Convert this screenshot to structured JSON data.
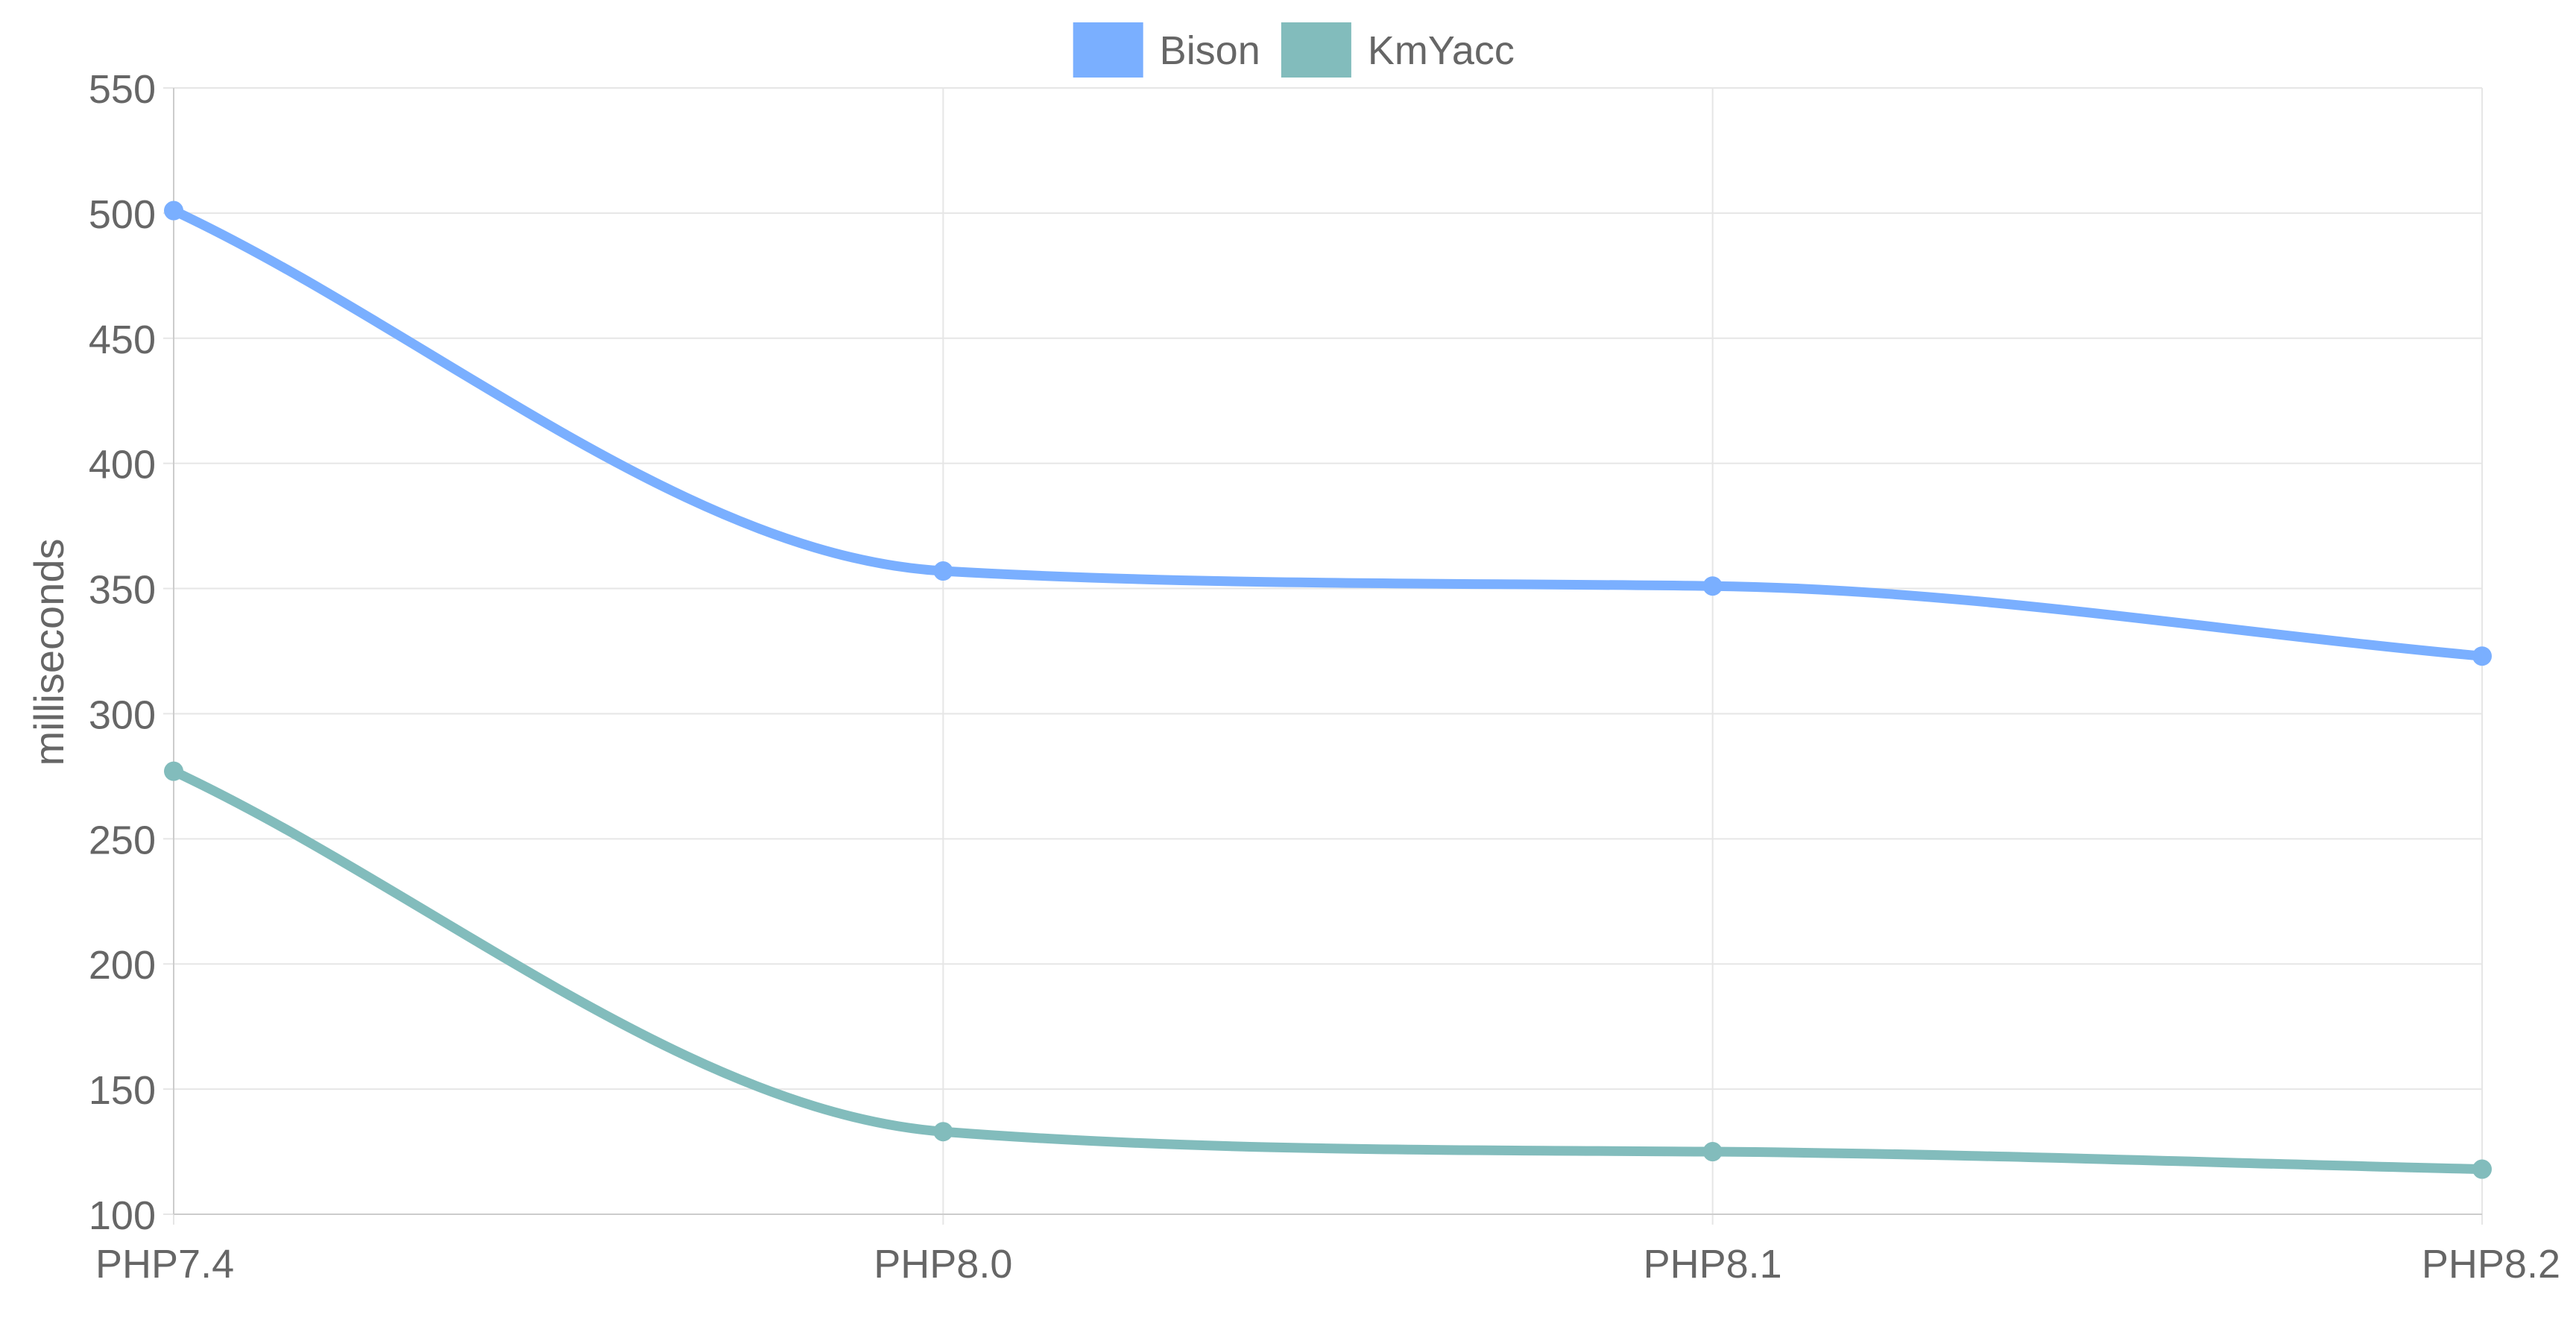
{
  "chart_data": {
    "type": "line",
    "categories": [
      "PHP7.4",
      "PHP8.0",
      "PHP8.1",
      "PHP8.2"
    ],
    "series": [
      {
        "name": "Bison",
        "values": [
          501,
          357,
          351,
          323
        ],
        "color": "#7aafff"
      },
      {
        "name": "KmYacc",
        "values": [
          277,
          133,
          125,
          118
        ],
        "color": "#82bcbc"
      }
    ],
    "title": "",
    "xlabel": "",
    "ylabel": "milliseconds",
    "ylim": [
      100,
      550
    ],
    "yticks": [
      100,
      150,
      200,
      250,
      300,
      350,
      400,
      450,
      500,
      550
    ],
    "grid": true,
    "legend": "top-center",
    "smooth": true,
    "colors": {
      "grid": "#e6e6e6",
      "axis": "#cccccc",
      "text": "#666666"
    }
  }
}
